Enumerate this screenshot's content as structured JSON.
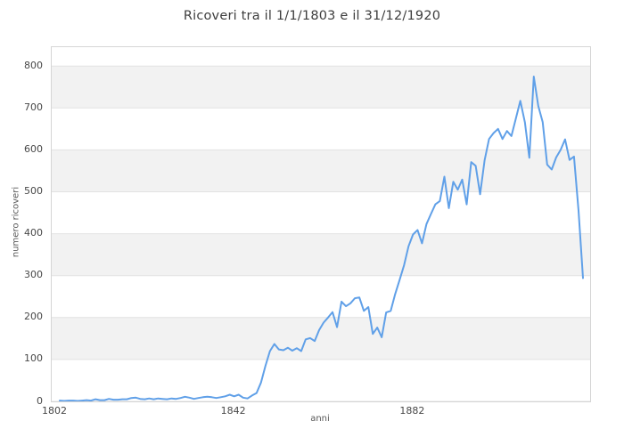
{
  "page": {
    "background": "#ffffff"
  },
  "chart": {
    "colors": {
      "line": "#60a0e8",
      "band": "#f2f2f2",
      "grid": "#e2e2e2",
      "border": "#d5d5d5",
      "title_text": "#3d3d3d",
      "tick_text": "#474747",
      "axis_label_text": "#585858"
    }
  },
  "chart_data": {
    "type": "line",
    "title": "Ricoveri tra il 1/1/1803 e il 31/12/1920",
    "xlabel": "anni",
    "ylabel": "numero ricoveri",
    "x_ticks": [
      1802,
      1842,
      1882
    ],
    "y_ticks": [
      0,
      100,
      200,
      300,
      400,
      500,
      600,
      700,
      800
    ],
    "xlim": [
      1801.2,
      1921.6
    ],
    "ylim": [
      0,
      845
    ],
    "legend": "none",
    "grid": "horizontal gridlines every 100, alternating white/gray bands between them",
    "series": [
      {
        "name": "numero ricoveri per anno",
        "x": [
          1803,
          1804,
          1805,
          1806,
          1807,
          1808,
          1809,
          1810,
          1811,
          1812,
          1813,
          1814,
          1815,
          1816,
          1817,
          1818,
          1819,
          1820,
          1821,
          1822,
          1823,
          1824,
          1825,
          1826,
          1827,
          1828,
          1829,
          1830,
          1831,
          1832,
          1833,
          1834,
          1835,
          1836,
          1837,
          1838,
          1839,
          1840,
          1841,
          1842,
          1843,
          1844,
          1845,
          1846,
          1847,
          1848,
          1849,
          1850,
          1851,
          1852,
          1853,
          1854,
          1855,
          1856,
          1857,
          1858,
          1859,
          1860,
          1861,
          1862,
          1863,
          1864,
          1865,
          1866,
          1867,
          1868,
          1869,
          1870,
          1871,
          1872,
          1873,
          1874,
          1875,
          1876,
          1877,
          1878,
          1879,
          1880,
          1881,
          1882,
          1883,
          1884,
          1885,
          1886,
          1887,
          1888,
          1889,
          1890,
          1891,
          1892,
          1893,
          1894,
          1895,
          1896,
          1897,
          1898,
          1899,
          1900,
          1901,
          1902,
          1903,
          1904,
          1905,
          1906,
          1907,
          1908,
          1909,
          1910,
          1911,
          1912,
          1913,
          1914,
          1915,
          1916,
          1917,
          1918,
          1919,
          1920
        ],
        "y": [
          2,
          1,
          2,
          2,
          1,
          2,
          3,
          2,
          5,
          3,
          3,
          6,
          4,
          4,
          5,
          5,
          8,
          9,
          6,
          5,
          7,
          5,
          7,
          6,
          5,
          7,
          6,
          8,
          11,
          9,
          6,
          8,
          10,
          11,
          10,
          8,
          10,
          12,
          16,
          12,
          16,
          9,
          7,
          14,
          20,
          45,
          85,
          120,
          137,
          124,
          122,
          128,
          121,
          127,
          120,
          148,
          151,
          144,
          170,
          188,
          200,
          213,
          177,
          238,
          227,
          234,
          246,
          248,
          216,
          225,
          161,
          176,
          153,
          212,
          216,
          256,
          290,
          325,
          370,
          398,
          409,
          377,
          423,
          447,
          470,
          478,
          536,
          461,
          524,
          505,
          529,
          470,
          571,
          562,
          494,
          575,
          626,
          640,
          650,
          626,
          645,
          633,
          675,
          717,
          666,
          581,
          775,
          705,
          666,
          565,
          553,
          582,
          600,
          625,
          576,
          584,
          455,
          294
        ]
      }
    ]
  }
}
